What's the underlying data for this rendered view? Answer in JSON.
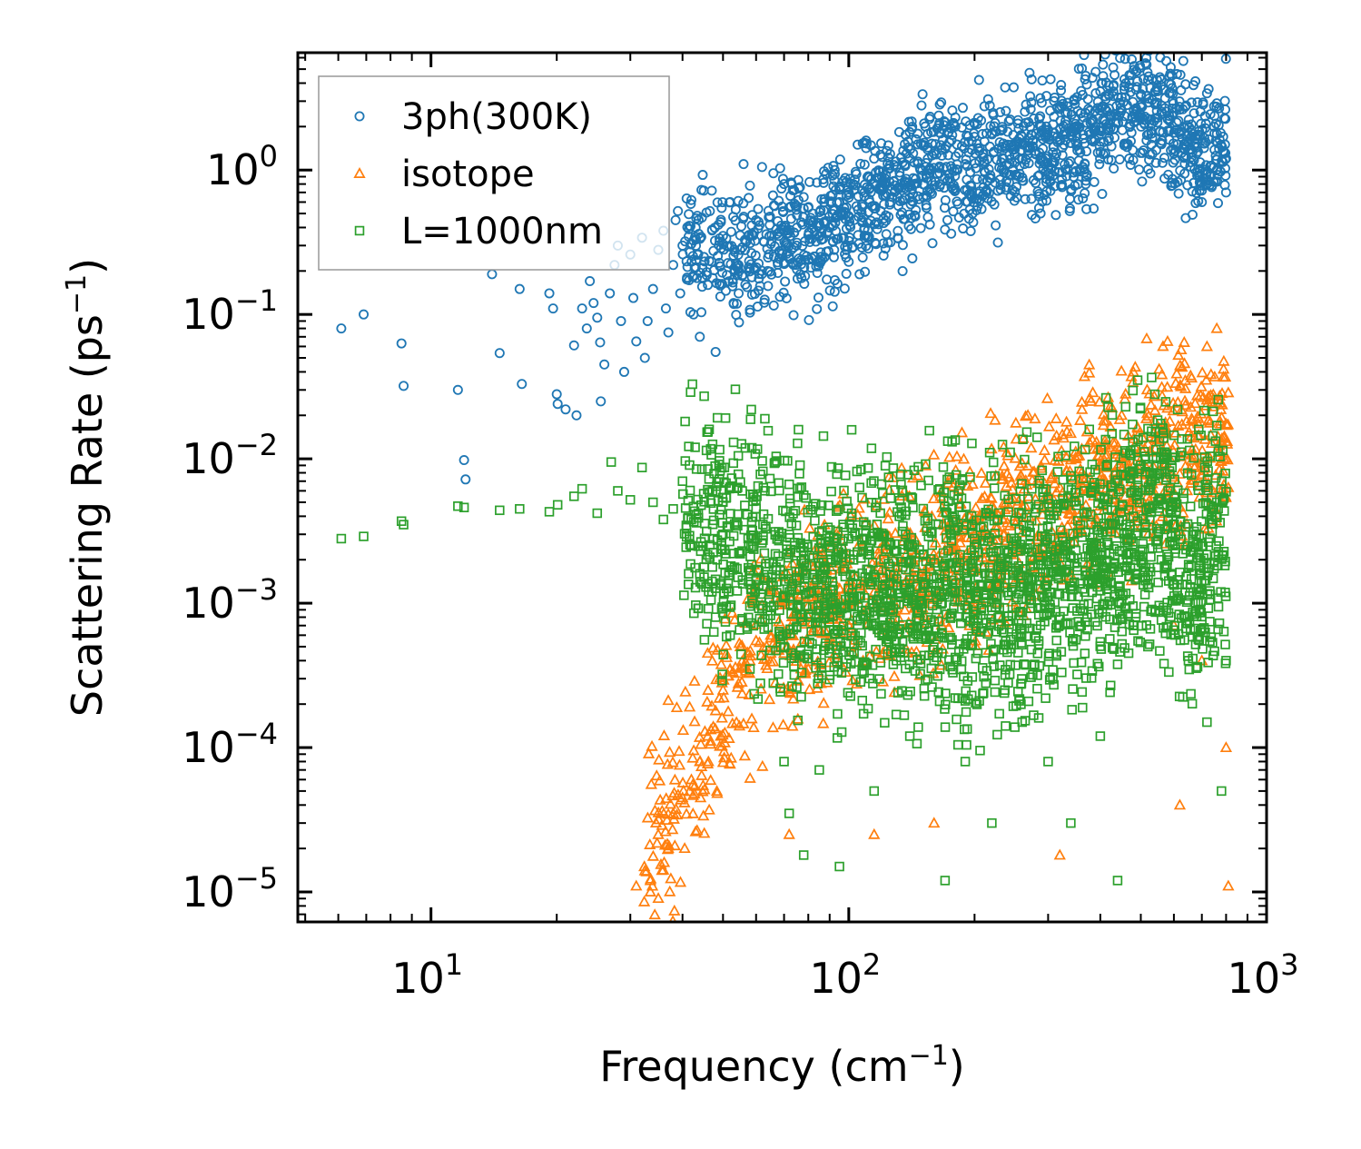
{
  "chart_data": {
    "type": "scatter",
    "xscale": "log",
    "yscale": "log",
    "xlim": [
      4.8,
      1000
    ],
    "ylim": [
      6.2e-06,
      6.5
    ],
    "xlabel": "Frequency (cm⁻¹)",
    "ylabel": "Scattering Rate (ps⁻¹)",
    "xlabel_parts": {
      "pre": "Frequency (cm",
      "sup": "−1",
      "post": ")"
    },
    "ylabel_parts": {
      "pre": "Scattering Rate (ps",
      "sup": "−1",
      "post": ")"
    },
    "x_ticks": [
      {
        "value": 10,
        "base": "10",
        "exp": "1"
      },
      {
        "value": 100,
        "base": "10",
        "exp": "2"
      },
      {
        "value": 1000,
        "base": "10",
        "exp": "3"
      }
    ],
    "y_ticks": [
      {
        "value": 1,
        "base": "10",
        "exp": "0"
      },
      {
        "value": 0.1,
        "base": "10",
        "exp": "−1"
      },
      {
        "value": 0.01,
        "base": "10",
        "exp": "−2"
      },
      {
        "value": 0.001,
        "base": "10",
        "exp": "−3"
      },
      {
        "value": 0.0001,
        "base": "10",
        "exp": "−4"
      },
      {
        "value": 1e-05,
        "base": "10",
        "exp": "−5"
      }
    ],
    "legend_position": "upper-left",
    "series": [
      {
        "name": "3ph(300K)",
        "marker": "circle",
        "color": "#1f77b4",
        "points": [
          [
            6.1,
            0.08
          ],
          [
            6.9,
            0.1
          ],
          [
            8.5,
            0.063
          ],
          [
            8.6,
            0.032
          ],
          [
            11.6,
            0.03
          ],
          [
            12.0,
            0.0098
          ],
          [
            12.1,
            0.0072
          ],
          [
            14.0,
            0.19
          ],
          [
            14.6,
            0.054
          ],
          [
            16.3,
            0.15
          ],
          [
            16.5,
            0.033
          ],
          [
            19.2,
            0.14
          ],
          [
            19.6,
            0.11
          ],
          [
            20.0,
            0.028
          ],
          [
            20.1,
            0.024
          ],
          [
            21.0,
            0.022
          ],
          [
            22.0,
            0.061
          ],
          [
            22.3,
            0.02
          ],
          [
            23.0,
            0.11
          ],
          [
            23.6,
            0.08
          ],
          [
            24.0,
            0.17
          ],
          [
            24.5,
            0.12
          ],
          [
            25.0,
            0.095
          ],
          [
            25.4,
            0.064
          ],
          [
            25.5,
            0.025
          ],
          [
            26.0,
            0.045
          ],
          [
            26.8,
            0.14
          ],
          [
            27.5,
            0.22
          ],
          [
            28.0,
            0.3
          ],
          [
            28.5,
            0.09
          ],
          [
            29.0,
            0.04
          ],
          [
            30.0,
            0.26
          ],
          [
            30.5,
            0.13
          ],
          [
            31.0,
            0.065
          ],
          [
            32.0,
            0.34
          ],
          [
            32.5,
            0.05
          ],
          [
            33.0,
            0.09
          ],
          [
            34.0,
            0.15
          ],
          [
            35.0,
            0.28
          ],
          [
            36.0,
            0.38
          ],
          [
            36.5,
            0.11
          ],
          [
            37.0,
            0.075
          ],
          [
            38.0,
            0.22
          ],
          [
            38.5,
            0.45
          ],
          [
            39.0,
            0.52
          ],
          [
            39.5,
            0.14
          ],
          [
            40.0,
            0.3
          ],
          [
            41.0,
            0.18
          ],
          [
            42.0,
            0.62
          ],
          [
            42.5,
            0.1
          ],
          [
            43.0,
            0.4
          ],
          [
            44.0,
            0.07
          ],
          [
            45.0,
            0.25
          ],
          [
            46.0,
            0.16
          ],
          [
            47.0,
            0.72
          ],
          [
            48.0,
            0.055
          ],
          [
            50.0,
            0.35
          ],
          [
            52.0,
            0.6
          ],
          [
            53.0,
            0.12
          ],
          [
            55.0,
            0.28
          ],
          [
            56.0,
            1.1
          ],
          [
            58.0,
            0.78
          ],
          [
            60.0,
            0.45
          ],
          [
            62.0,
            1.05
          ],
          [
            64.0,
            0.2
          ],
          [
            66.0,
            0.95
          ],
          [
            68.0,
            0.35
          ],
          [
            70.0,
            0.8
          ],
          [
            72.0,
            0.55
          ],
          [
            75.0,
            0.3
          ],
          [
            78.0,
            0.65
          ],
          [
            82.0,
            0.5
          ],
          [
            85.0,
            0.35
          ],
          [
            90.0,
            0.4
          ],
          [
            95.0,
            0.6
          ],
          [
            100.0,
            0.7
          ],
          [
            105.0,
            1.5
          ],
          [
            110.0,
            1.6
          ],
          [
            115.0,
            1.2
          ],
          [
            120.0,
            0.9
          ],
          [
            130.0,
            1.05
          ],
          [
            140.0,
            1.2
          ],
          [
            150.0,
            1.0
          ],
          [
            160.0,
            1.3
          ],
          [
            170.0,
            1.4
          ],
          [
            180.0,
            2.0
          ],
          [
            190.0,
            1.1
          ],
          [
            200.0,
            1.7
          ],
          [
            210.0,
            1.3
          ],
          [
            220.0,
            1.8
          ],
          [
            240.0,
            1.5
          ],
          [
            260.0,
            1.7
          ],
          [
            280.0,
            1.3
          ],
          [
            300.0,
            1.9
          ],
          [
            310.0,
            3.0
          ],
          [
            330.0,
            2.5
          ],
          [
            350.0,
            1.9
          ],
          [
            370.0,
            0.9
          ],
          [
            400.0,
            3.5
          ],
          [
            420.0,
            2.4
          ],
          [
            450.0,
            3.2
          ],
          [
            470.0,
            2.0
          ],
          [
            500.0,
            3.3
          ],
          [
            530.0,
            1.5
          ],
          [
            560.0,
            2.8
          ],
          [
            600.0,
            2.5
          ],
          [
            680.0,
            1.3
          ],
          [
            700.0,
            0.6
          ],
          [
            720.0,
            3.4
          ],
          [
            760.0,
            2.9
          ],
          [
            800.0,
            1.2
          ]
        ]
      },
      {
        "name": "isotope",
        "marker": "triangle",
        "color": "#ff7f0e",
        "points": [
          [
            31.0,
            1.1e-05
          ],
          [
            32.5,
            1.4e-05
          ],
          [
            33.5,
            1e-05
          ],
          [
            35.0,
            2.5e-05
          ],
          [
            37.0,
            2e-05
          ],
          [
            38.0,
            3.5e-05
          ],
          [
            40.0,
            4.5e-05
          ],
          [
            42.0,
            6e-05
          ],
          [
            44.0,
            8e-05
          ],
          [
            46.0,
            0.00012
          ],
          [
            48.0,
            0.00018
          ],
          [
            50.0,
            0.00025
          ],
          [
            52.0,
            0.00035
          ],
          [
            55.0,
            0.0005
          ],
          [
            58.0,
            0.0004
          ],
          [
            60.0,
            0.00055
          ],
          [
            65.0,
            0.0006
          ],
          [
            70.0,
            0.00045
          ],
          [
            72.0,
            2.5e-05
          ],
          [
            80.0,
            0.00035
          ],
          [
            90.0,
            0.00055
          ],
          [
            100.0,
            0.0007
          ],
          [
            110.0,
            0.0009
          ],
          [
            115.0,
            2.5e-05
          ],
          [
            130.0,
            0.0007
          ],
          [
            150.0,
            0.0012
          ],
          [
            155.0,
            0.0018
          ],
          [
            160.0,
            3e-05
          ],
          [
            180.0,
            0.0025
          ],
          [
            200.0,
            0.003
          ],
          [
            250.0,
            0.004
          ],
          [
            300.0,
            0.0055
          ],
          [
            320.0,
            1.8e-05
          ],
          [
            350.0,
            0.01
          ],
          [
            380.0,
            0.025
          ],
          [
            420.0,
            0.012
          ],
          [
            450.0,
            0.02
          ],
          [
            480.0,
            0.04
          ],
          [
            520.0,
            0.006
          ],
          [
            560.0,
            0.015
          ],
          [
            600.0,
            0.0007
          ],
          [
            620.0,
            4e-05
          ],
          [
            700.0,
            0.0004
          ],
          [
            720.0,
            0.06
          ],
          [
            760.0,
            0.08
          ],
          [
            800.0,
            0.0001
          ],
          [
            810.0,
            1.1e-05
          ]
        ]
      },
      {
        "name": "L=1000nm",
        "marker": "square",
        "color": "#2ca02c",
        "points": [
          [
            6.1,
            0.0028
          ],
          [
            6.9,
            0.0029
          ],
          [
            8.5,
            0.0037
          ],
          [
            8.6,
            0.0035
          ],
          [
            11.6,
            0.0047
          ],
          [
            12.0,
            0.0046
          ],
          [
            14.6,
            0.0044
          ],
          [
            16.3,
            0.0045
          ],
          [
            19.2,
            0.0043
          ],
          [
            20.1,
            0.0048
          ],
          [
            22.0,
            0.0055
          ],
          [
            23.0,
            0.0062
          ],
          [
            25.0,
            0.0042
          ],
          [
            27.0,
            0.0095
          ],
          [
            28.0,
            0.006
          ],
          [
            30.0,
            0.0052
          ],
          [
            32.0,
            0.0087
          ],
          [
            34.0,
            0.005
          ],
          [
            36.0,
            0.0038
          ],
          [
            38.0,
            0.0045
          ],
          [
            40.0,
            0.007
          ],
          [
            42.0,
            0.0025
          ],
          [
            44.0,
            0.0016
          ],
          [
            46.0,
            0.0085
          ],
          [
            48.0,
            0.0008
          ],
          [
            50.0,
            0.003
          ],
          [
            52.0,
            0.0006
          ],
          [
            55.0,
            0.0022
          ],
          [
            58.0,
            0.00035
          ],
          [
            60.0,
            0.0045
          ],
          [
            65.0,
            0.0012
          ],
          [
            68.0,
            0.0068
          ],
          [
            70.0,
            8e-05
          ],
          [
            72.0,
            3.5e-05
          ],
          [
            75.0,
            0.0015
          ],
          [
            78.0,
            1.8e-05
          ],
          [
            80.0,
            0.0008
          ],
          [
            85.0,
            7e-05
          ],
          [
            90.0,
            0.0025
          ],
          [
            95.0,
            1.5e-05
          ],
          [
            100.0,
            0.0011
          ],
          [
            110.0,
            0.0035
          ],
          [
            115.0,
            5e-05
          ],
          [
            120.0,
            0.0007
          ],
          [
            130.0,
            0.0004
          ],
          [
            140.0,
            0.00012
          ],
          [
            150.0,
            0.0016
          ],
          [
            160.0,
            0.0004
          ],
          [
            170.0,
            1.2e-05
          ],
          [
            180.0,
            0.0012
          ],
          [
            190.0,
            8e-05
          ],
          [
            200.0,
            0.0028
          ],
          [
            220.0,
            3e-05
          ],
          [
            240.0,
            0.0018
          ],
          [
            260.0,
            0.00015
          ],
          [
            280.0,
            0.0045
          ],
          [
            300.0,
            8e-05
          ],
          [
            320.0,
            0.0025
          ],
          [
            340.0,
            3e-05
          ],
          [
            360.0,
            0.0007
          ],
          [
            380.0,
            0.006
          ],
          [
            400.0,
            0.00012
          ],
          [
            420.0,
            0.0035
          ],
          [
            440.0,
            1.2e-05
          ],
          [
            460.0,
            0.011
          ],
          [
            480.0,
            0.004
          ],
          [
            500.0,
            0.009
          ],
          [
            520.0,
            0.0005
          ],
          [
            540.0,
            0.028
          ],
          [
            560.0,
            0.002
          ],
          [
            600.0,
            0.0035
          ],
          [
            650.0,
            0.0004
          ],
          [
            680.0,
            0.0012
          ],
          [
            700.0,
            0.0025
          ],
          [
            720.0,
            0.00015
          ],
          [
            740.0,
            0.004
          ],
          [
            760.0,
            0.017
          ],
          [
            780.0,
            5e-05
          ],
          [
            800.0,
            0.0004
          ]
        ]
      }
    ]
  }
}
